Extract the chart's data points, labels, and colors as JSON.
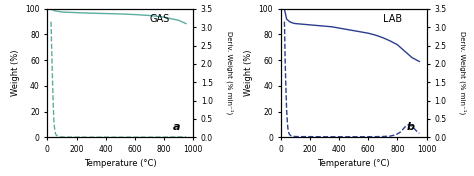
{
  "gas_solid_x": [
    25,
    50,
    100,
    200,
    300,
    400,
    500,
    600,
    700,
    800,
    900,
    950
  ],
  "gas_solid_y": [
    99.5,
    98.5,
    97.5,
    97.0,
    96.6,
    96.3,
    96.0,
    95.5,
    94.8,
    93.5,
    91.0,
    88.5
  ],
  "gas_dash_x": [
    25,
    27,
    30,
    35,
    40,
    45,
    50,
    55,
    60,
    70,
    80,
    100,
    150,
    200,
    300,
    400,
    500,
    600,
    700,
    750,
    800,
    850,
    900,
    950
  ],
  "gas_dash_y": [
    90,
    80,
    65,
    45,
    25,
    12,
    6,
    3,
    1.8,
    0.8,
    0.4,
    0.25,
    0.15,
    0.1,
    0.08,
    0.08,
    0.08,
    0.08,
    0.1,
    0.12,
    0.15,
    0.2,
    0.28,
    0.35
  ],
  "lab_solid_x": [
    25,
    40,
    60,
    80,
    100,
    150,
    200,
    250,
    300,
    350,
    400,
    450,
    500,
    550,
    600,
    650,
    700,
    750,
    800,
    850,
    900,
    950
  ],
  "lab_solid_y": [
    100,
    92,
    90,
    89,
    88.5,
    88,
    87.5,
    87,
    86.5,
    86,
    85,
    84,
    83,
    82,
    81,
    79.5,
    77.5,
    75,
    72,
    67,
    62,
    59
  ],
  "lab_dash_x": [
    25,
    27,
    30,
    35,
    40,
    45,
    50,
    55,
    60,
    70,
    80,
    100,
    130,
    150,
    200,
    250,
    300,
    350,
    400,
    450,
    500,
    550,
    600,
    650,
    700,
    750,
    790,
    820,
    840,
    860,
    880,
    900,
    930,
    950
  ],
  "lab_dash_y": [
    90,
    80,
    60,
    40,
    22,
    12,
    6,
    3.5,
    2.2,
    1.2,
    0.8,
    0.6,
    0.5,
    0.5,
    0.5,
    0.45,
    0.4,
    0.4,
    0.4,
    0.4,
    0.4,
    0.4,
    0.45,
    0.5,
    0.6,
    0.9,
    2.0,
    4.0,
    6.5,
    9.0,
    10.0,
    8.5,
    5.0,
    3.0
  ],
  "gas_color": "#5aada0",
  "lab_color": "#2b3d8f",
  "xlim": [
    0,
    1000
  ],
  "ylim_left": [
    0,
    100
  ],
  "ylim_right": [
    0,
    3.5
  ],
  "xlabel": "Temperature (°C)",
  "ylabel_left": "Weight (%)",
  "ylabel_right": "Deriv. Weight (% min⁻¹)",
  "yticks_left": [
    0,
    20,
    40,
    60,
    80,
    100
  ],
  "yticks_right": [
    0.0,
    0.5,
    1.0,
    1.5,
    2.0,
    2.5,
    3.0,
    3.5
  ],
  "xticks": [
    0,
    200,
    400,
    600,
    800,
    1000
  ],
  "label_a": "a",
  "label_b": "b",
  "label_gas": "GAS",
  "label_lab": "LAB"
}
